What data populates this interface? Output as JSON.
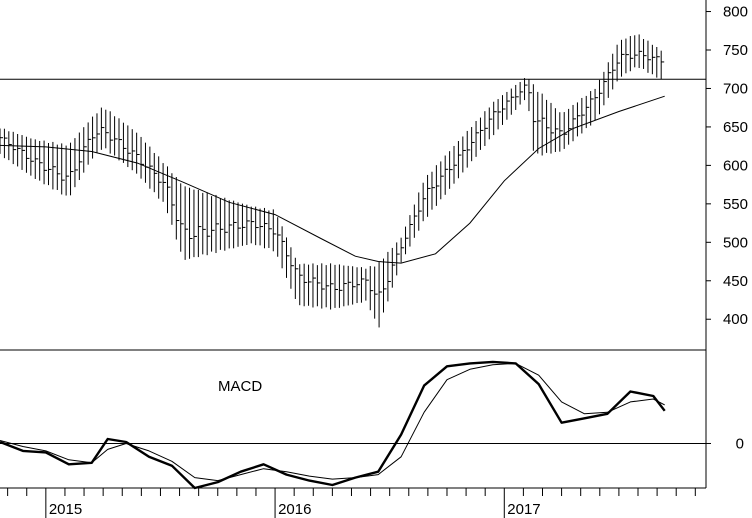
{
  "chart_data": [
    {
      "type": "ohlc",
      "panel": "price",
      "y_axis_side": "right",
      "ylim": [
        360,
        815
      ],
      "yticks": [
        400,
        450,
        500,
        550,
        600,
        650,
        700,
        750,
        800
      ],
      "horizontal_line": 712,
      "x_range": [
        2014.8,
        2017.88
      ],
      "bar_interval": 0.01923,
      "bars_sample": [
        {
          "x": 2014.8,
          "high": 648,
          "low": 615,
          "close": 636
        },
        {
          "x": 2014.95,
          "high": 632,
          "low": 585,
          "close": 605
        },
        {
          "x": 2015.1,
          "high": 624,
          "low": 560,
          "close": 582
        },
        {
          "x": 2015.2,
          "high": 660,
          "low": 610,
          "close": 640
        },
        {
          "x": 2015.25,
          "high": 675,
          "low": 625,
          "close": 645
        },
        {
          "x": 2015.4,
          "high": 640,
          "low": 590,
          "close": 610
        },
        {
          "x": 2015.52,
          "high": 600,
          "low": 550,
          "close": 575
        },
        {
          "x": 2015.6,
          "high": 570,
          "low": 480,
          "close": 510
        },
        {
          "x": 2015.9,
          "high": 545,
          "low": 500,
          "close": 525
        },
        {
          "x": 2016.0,
          "high": 540,
          "low": 490,
          "close": 515
        },
        {
          "x": 2016.1,
          "high": 470,
          "low": 420,
          "close": 455
        },
        {
          "x": 2016.25,
          "high": 470,
          "low": 415,
          "close": 440
        },
        {
          "x": 2016.4,
          "high": 465,
          "low": 425,
          "close": 450
        },
        {
          "x": 2016.45,
          "high": 470,
          "low": 390,
          "close": 425
        },
        {
          "x": 2016.55,
          "high": 505,
          "low": 475,
          "close": 495
        },
        {
          "x": 2016.65,
          "high": 580,
          "low": 530,
          "close": 560
        },
        {
          "x": 2016.8,
          "high": 630,
          "low": 585,
          "close": 610
        },
        {
          "x": 2016.95,
          "high": 680,
          "low": 640,
          "close": 665
        },
        {
          "x": 2017.1,
          "high": 715,
          "low": 690,
          "close": 705
        },
        {
          "x": 2017.13,
          "high": 700,
          "low": 615,
          "close": 660
        },
        {
          "x": 2017.25,
          "high": 665,
          "low": 620,
          "close": 640
        },
        {
          "x": 2017.4,
          "high": 700,
          "low": 660,
          "close": 690
        },
        {
          "x": 2017.5,
          "high": 760,
          "low": 715,
          "close": 740
        },
        {
          "x": 2017.58,
          "high": 770,
          "low": 730,
          "close": 745
        },
        {
          "x": 2017.7,
          "high": 745,
          "low": 710,
          "close": 735
        }
      ],
      "moving_average": {
        "x": [
          2014.8,
          2015.0,
          2015.2,
          2015.4,
          2015.6,
          2015.8,
          2016.0,
          2016.2,
          2016.35,
          2016.45,
          2016.55,
          2016.7,
          2016.85,
          2017.0,
          2017.15,
          2017.3,
          2017.5,
          2017.7
        ],
        "y": [
          626,
          624,
          618,
          603,
          578,
          552,
          536,
          505,
          482,
          475,
          473,
          485,
          525,
          580,
          622,
          648,
          670,
          690
        ]
      }
    },
    {
      "type": "line",
      "panel": "indicator",
      "title": "MACD",
      "ylim": [
        -3.0,
        6.3
      ],
      "yticks": [
        0
      ],
      "zero_line": 0,
      "x_range": [
        2014.8,
        2017.88
      ],
      "series": [
        {
          "style": "bold",
          "x": [
            2014.8,
            2014.9,
            2015.0,
            2015.1,
            2015.2,
            2015.27,
            2015.35,
            2015.45,
            2015.55,
            2015.65,
            2015.75,
            2015.85,
            2015.95,
            2016.05,
            2016.15,
            2016.25,
            2016.35,
            2016.45,
            2016.55,
            2016.65,
            2016.75,
            2016.85,
            2016.95,
            2017.05,
            2017.15,
            2017.25,
            2017.35,
            2017.45,
            2017.55,
            2017.65,
            2017.7
          ],
          "y": [
            0.1,
            -0.5,
            -0.6,
            -1.4,
            -1.3,
            0.3,
            0.1,
            -0.9,
            -1.5,
            -3.0,
            -2.6,
            -1.9,
            -1.4,
            -2.1,
            -2.5,
            -2.8,
            -2.3,
            -1.9,
            0.6,
            3.9,
            5.2,
            5.4,
            5.5,
            5.4,
            4.0,
            1.4,
            1.7,
            2.0,
            3.5,
            3.2,
            2.2
          ]
        },
        {
          "style": "thin",
          "x": [
            2014.8,
            2014.9,
            2015.0,
            2015.1,
            2015.2,
            2015.27,
            2015.35,
            2015.45,
            2015.55,
            2015.65,
            2015.75,
            2015.85,
            2015.95,
            2016.05,
            2016.15,
            2016.25,
            2016.35,
            2016.45,
            2016.55,
            2016.65,
            2016.75,
            2016.85,
            2016.95,
            2017.05,
            2017.15,
            2017.25,
            2017.35,
            2017.45,
            2017.55,
            2017.65,
            2017.7
          ],
          "y": [
            0.2,
            -0.2,
            -0.5,
            -1.1,
            -1.3,
            -0.4,
            0.0,
            -0.5,
            -1.2,
            -2.3,
            -2.5,
            -2.1,
            -1.7,
            -1.9,
            -2.2,
            -2.4,
            -2.3,
            -2.1,
            -0.9,
            2.1,
            4.3,
            5.0,
            5.3,
            5.4,
            4.6,
            2.8,
            2.0,
            2.1,
            2.8,
            3.0,
            2.6
          ]
        }
      ]
    }
  ],
  "x_axis": {
    "year_ticks": [
      2015,
      2016,
      2017
    ],
    "year_labels": [
      "2015",
      "2016",
      "2017"
    ]
  },
  "annotations": {
    "price_tick_labels": [
      "400",
      "450",
      "500",
      "550",
      "600",
      "650",
      "700",
      "750",
      "800"
    ],
    "macd_label": "MACD",
    "macd_zero_label": "0"
  }
}
